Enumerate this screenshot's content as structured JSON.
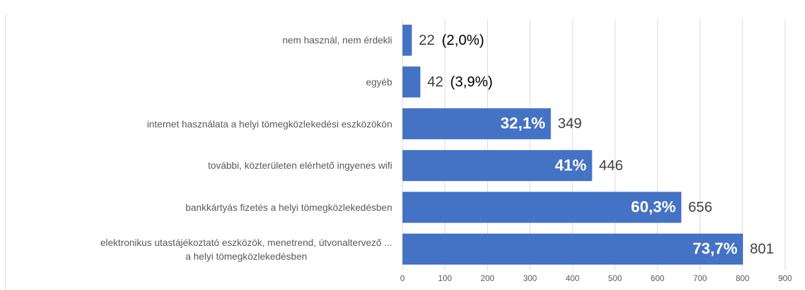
{
  "chart_data": {
    "type": "barh",
    "categories": [
      "nem használ, nem érdekli",
      "egyéb",
      "internet használata a helyi tömegközlekedési eszközökön",
      "további, közterületen elérhető ingyenes wifi",
      "bankkártyás fizetés a helyi tömegközlekedésben",
      "elektronikus utastájékoztató eszközök, menetrend, útvonaltervező ...\na helyi tömegközlekedésben"
    ],
    "values": [
      22,
      42,
      349,
      446,
      656,
      801
    ],
    "percents": [
      2.0,
      3.9,
      32.1,
      41,
      60.3,
      73.7
    ],
    "percent_labels": [
      "(2,0%)",
      "(3,9%)",
      "32,1%",
      "41%",
      "60,3%",
      "73,7%"
    ],
    "color": "#4472c4",
    "xlim": [
      0,
      900
    ],
    "xticks": [
      0,
      100,
      200,
      300,
      400,
      500,
      600,
      700,
      800,
      900
    ],
    "grid": true
  }
}
